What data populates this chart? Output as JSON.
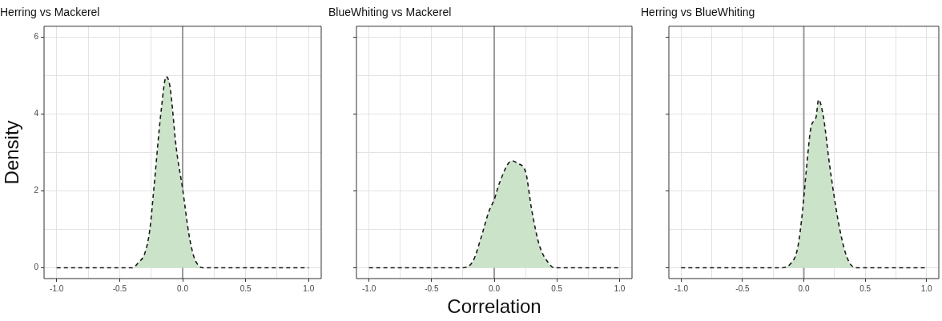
{
  "chart_data": [
    {
      "type": "area",
      "title": "Herring vs Mackerel",
      "ylabel": "Density",
      "xlim": [
        -1.1,
        1.1
      ],
      "ylim": [
        -0.28,
        6.28
      ],
      "xticks": [
        {
          "value": -1,
          "label": "-1.0"
        },
        {
          "value": -0.75,
          "label": null
        },
        {
          "value": -0.5,
          "label": "-0.5"
        },
        {
          "value": -0.25,
          "label": null
        },
        {
          "value": 0,
          "label": "0.0"
        },
        {
          "value": 0.25,
          "label": null
        },
        {
          "value": 0.5,
          "label": "0.5"
        },
        {
          "value": 0.75,
          "label": null
        },
        {
          "value": 1,
          "label": "1.0"
        }
      ],
      "yticks": [
        0,
        {
          "value": 1,
          "label": null
        },
        2,
        {
          "value": 3,
          "label": null
        },
        4,
        {
          "value": 5,
          "label": null
        },
        6
      ],
      "grid": true,
      "line_style": "dashed",
      "marker": "none",
      "ref_lines": [
        {
          "axis": "x",
          "value": 0,
          "color": "#9a9a9a"
        }
      ],
      "series": [
        {
          "color": "#cbe4c9",
          "x": [
            -1,
            -0.4,
            -0.35,
            -0.3,
            -0.26,
            -0.23,
            -0.17,
            -0.13,
            -0.1,
            -0.05,
            0,
            0.05,
            0.09,
            0.13,
            0.16,
            1
          ],
          "values": [
            0,
            0,
            0.14,
            0.38,
            1.0,
            2.0,
            4.1,
            4.97,
            4.7,
            3.1,
            2.05,
            0.87,
            0.28,
            0.05,
            0,
            0
          ]
        }
      ]
    },
    {
      "type": "area",
      "title": "BlueWhiting vs Mackerel",
      "xlabel": "Correlation",
      "xlim": [
        -1.1,
        1.1
      ],
      "ylim": [
        -0.28,
        6.28
      ],
      "xticks": [
        {
          "value": -1,
          "label": "-1.0"
        },
        {
          "value": -0.75,
          "label": null
        },
        {
          "value": -0.5,
          "label": "-0.5"
        },
        {
          "value": -0.25,
          "label": null
        },
        {
          "value": 0,
          "label": "0.0"
        },
        {
          "value": 0.25,
          "label": null
        },
        {
          "value": 0.5,
          "label": "0.5"
        },
        {
          "value": 0.75,
          "label": null
        },
        {
          "value": 1,
          "label": "1.0"
        }
      ],
      "yticks": [
        0,
        {
          "value": 1,
          "label": null
        },
        2,
        {
          "value": 3,
          "label": null
        },
        4,
        {
          "value": 5,
          "label": null
        },
        6
      ],
      "tick_labels": "x",
      "grid": true,
      "line_style": "dashed",
      "marker": "none",
      "ref_lines": [
        {
          "axis": "x",
          "value": 0,
          "color": "#9a9a9a"
        }
      ],
      "series": [
        {
          "color": "#cbe4c9",
          "x": [
            -1,
            -0.26,
            -0.17,
            -0.11,
            -0.04,
            0,
            0.04,
            0.14,
            0.19,
            0.25,
            0.3,
            0.36,
            0.44,
            0.48,
            1
          ],
          "values": [
            0,
            0,
            0.17,
            0.73,
            1.49,
            1.77,
            2.19,
            2.78,
            2.71,
            2.5,
            1.49,
            0.59,
            0.1,
            0,
            0
          ]
        }
      ]
    },
    {
      "type": "area",
      "title": "Herring vs BlueWhiting",
      "xlim": [
        -1.1,
        1.1
      ],
      "ylim": [
        -0.28,
        6.28
      ],
      "xticks": [
        {
          "value": -1,
          "label": "-1.0"
        },
        {
          "value": -0.75,
          "label": null
        },
        {
          "value": -0.5,
          "label": "-0.5"
        },
        {
          "value": -0.25,
          "label": null
        },
        {
          "value": 0,
          "label": "0.0"
        },
        {
          "value": 0.25,
          "label": null
        },
        {
          "value": 0.5,
          "label": "0.5"
        },
        {
          "value": 0.75,
          "label": null
        },
        {
          "value": 1,
          "label": "1.0"
        }
      ],
      "yticks": [
        0,
        {
          "value": 1,
          "label": null
        },
        2,
        {
          "value": 3,
          "label": null
        },
        4,
        {
          "value": 5,
          "label": null
        },
        6
      ],
      "tick_labels": "x",
      "grid": true,
      "line_style": "dashed",
      "marker": "none",
      "ref_lines": [
        {
          "axis": "x",
          "value": 0,
          "color": "#9a9a9a"
        }
      ],
      "series": [
        {
          "color": "#cbe4c9",
          "x": [
            -1,
            -0.19,
            -0.11,
            -0.05,
            -0.01,
            0.02,
            0.06,
            0.1,
            0.12,
            0.16,
            0.21,
            0.28,
            0.34,
            0.4,
            0.45,
            1
          ],
          "values": [
            0,
            0,
            0.1,
            0.52,
            1.49,
            2.53,
            3.68,
            3.92,
            4.37,
            3.92,
            2.67,
            1.22,
            0.38,
            0.03,
            0,
            0
          ]
        }
      ]
    }
  ]
}
